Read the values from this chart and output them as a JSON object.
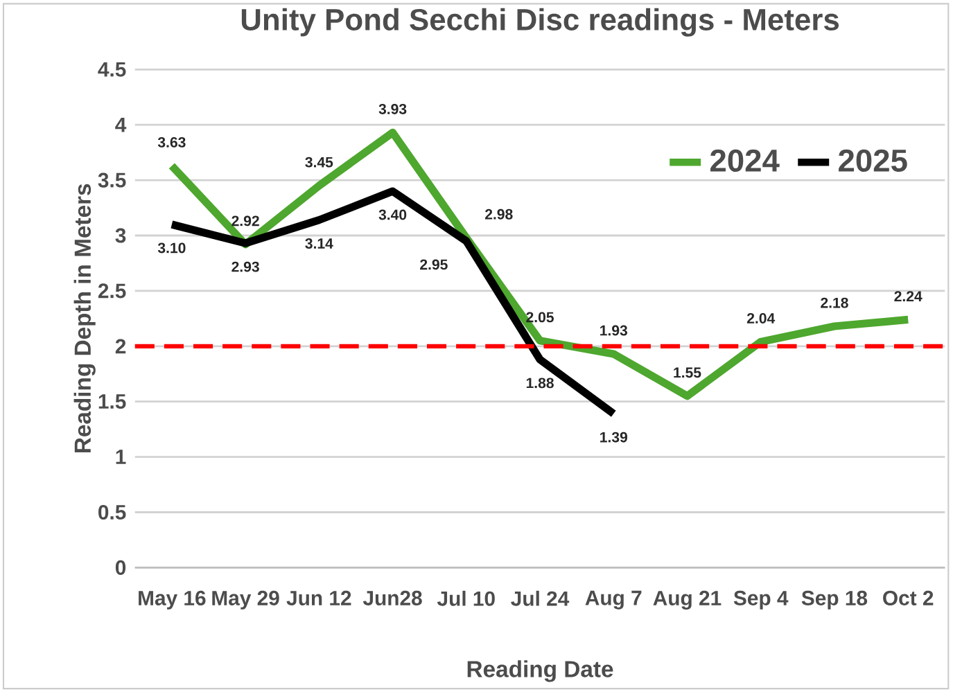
{
  "chart_data": {
    "type": "line",
    "title": "Unity Pond Secchi Disc readings - Meters",
    "xlabel": "Reading Date",
    "ylabel": "Reading Depth in Meters",
    "categories": [
      "May 16",
      "May 29",
      "Jun 12",
      "Jun28",
      "Jul 10",
      "Jul 24",
      "Aug 7",
      "Aug 21",
      "Sep 4",
      "Sep 18",
      "Oct 2"
    ],
    "series": [
      {
        "name": "2024",
        "color": "#4ea72e",
        "values": [
          3.63,
          2.92,
          3.45,
          3.93,
          2.98,
          2.05,
          1.93,
          1.55,
          2.04,
          2.18,
          2.24
        ],
        "value_labels": [
          "3.63",
          "2.92",
          "3.45",
          "3.93",
          "2.98",
          "2.05",
          "1.93",
          "1.55",
          "2.04",
          "2.18",
          "2.24"
        ]
      },
      {
        "name": "2025",
        "color": "#000000",
        "values": [
          3.1,
          2.93,
          3.14,
          3.4,
          2.95,
          1.88,
          1.39,
          null,
          null,
          null,
          null
        ],
        "value_labels": [
          "3.10",
          "2.93",
          "3.14",
          "3.40",
          "2.95",
          "1.88",
          "1.39",
          null,
          null,
          null,
          null
        ]
      }
    ],
    "ylim": [
      0,
      4.5
    ],
    "yticks": [
      0,
      0.5,
      1,
      1.5,
      2,
      2.5,
      3,
      3.5,
      4,
      4.5
    ],
    "ref_lines": [
      {
        "axis": "y",
        "value": 2,
        "color": "#ff0000",
        "line_style": "dashed"
      }
    ],
    "grid": "y",
    "legend": "top right",
    "marker": "none",
    "line_style": "solid"
  }
}
